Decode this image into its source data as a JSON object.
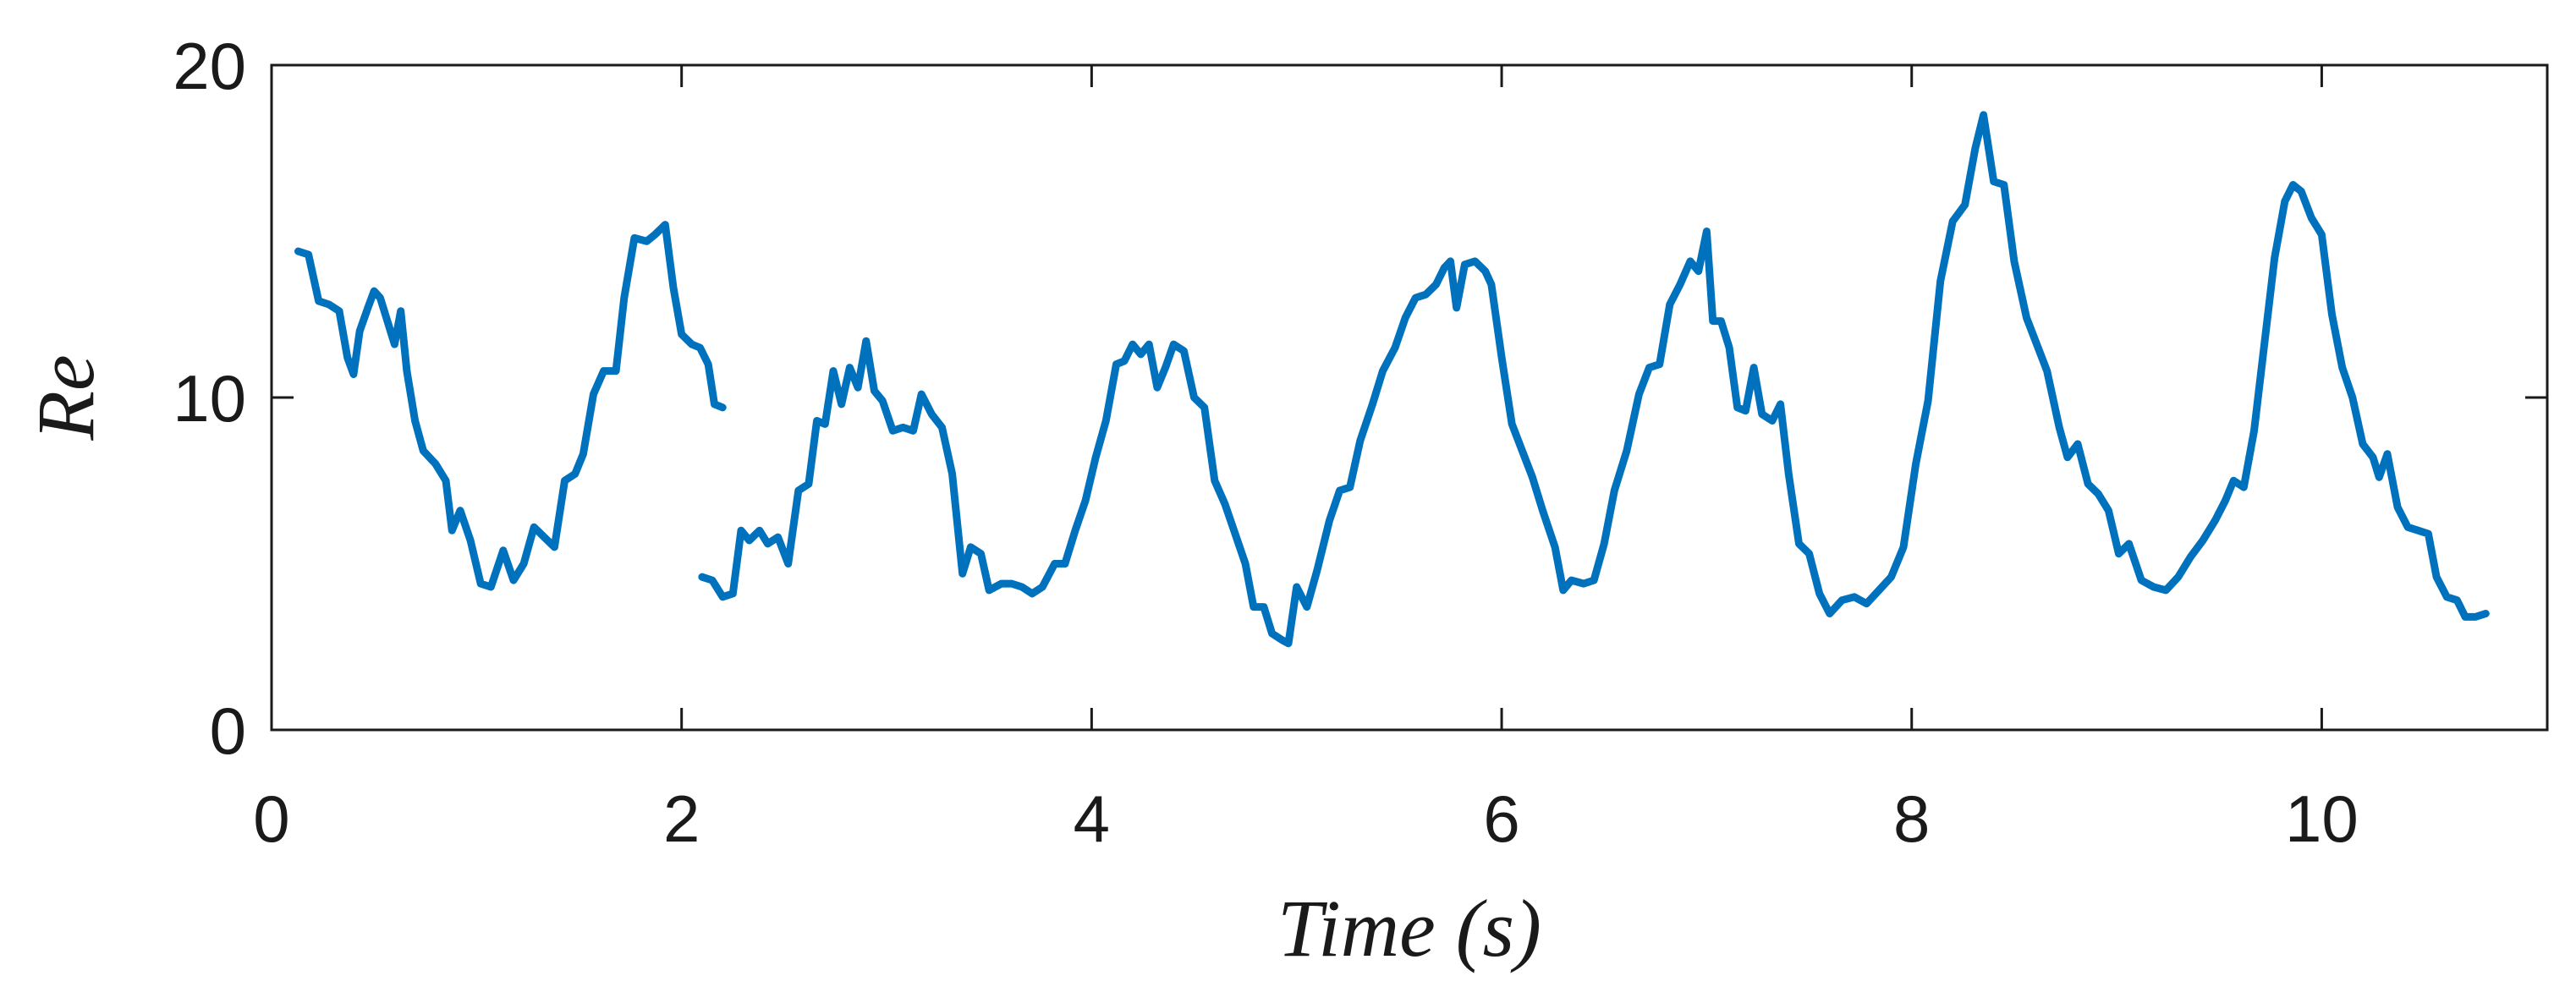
{
  "chart_data": {
    "type": "line",
    "title": "",
    "xlabel": "Time (s)",
    "ylabel": "Re",
    "xlim": [
      0,
      11.1
    ],
    "ylim": [
      0,
      20
    ],
    "xticks": [
      0,
      2,
      4,
      6,
      8,
      10
    ],
    "yticks": [
      0,
      10,
      20
    ],
    "xtick_labels": [
      "0",
      "2",
      "4",
      "6",
      "8",
      "10"
    ],
    "ytick_labels": [
      "0",
      "10",
      "20"
    ],
    "grid": false,
    "legend": "none",
    "series": [
      {
        "color": "#0072BD",
        "segments": [
          [
            [
              0.13,
              14.4
            ],
            [
              0.18,
              14.3
            ],
            [
              0.23,
              12.9
            ],
            [
              0.28,
              12.8
            ],
            [
              0.33,
              12.6
            ],
            [
              0.37,
              11.2
            ],
            [
              0.4,
              10.7
            ],
            [
              0.43,
              12.0
            ],
            [
              0.47,
              12.7
            ],
            [
              0.5,
              13.2
            ],
            [
              0.53,
              13.0
            ],
            [
              0.56,
              12.4
            ],
            [
              0.6,
              11.6
            ],
            [
              0.63,
              12.6
            ],
            [
              0.66,
              10.8
            ],
            [
              0.7,
              9.3
            ],
            [
              0.74,
              8.4
            ],
            [
              0.8,
              8.0
            ],
            [
              0.85,
              7.5
            ],
            [
              0.88,
              6.0
            ],
            [
              0.92,
              6.6
            ],
            [
              0.97,
              5.7
            ],
            [
              1.02,
              4.4
            ],
            [
              1.07,
              4.3
            ],
            [
              1.13,
              5.4
            ],
            [
              1.18,
              4.5
            ],
            [
              1.23,
              5.0
            ],
            [
              1.28,
              6.1
            ],
            [
              1.33,
              5.8
            ],
            [
              1.38,
              5.5
            ],
            [
              1.43,
              7.5
            ],
            [
              1.48,
              7.7
            ],
            [
              1.52,
              8.3
            ],
            [
              1.57,
              10.1
            ],
            [
              1.62,
              10.8
            ],
            [
              1.68,
              10.8
            ],
            [
              1.72,
              13.0
            ],
            [
              1.77,
              14.8
            ],
            [
              1.83,
              14.7
            ],
            [
              1.87,
              14.9
            ],
            [
              1.92,
              15.2
            ],
            [
              1.96,
              13.3
            ],
            [
              2.0,
              11.9
            ],
            [
              2.05,
              11.6
            ],
            [
              2.09,
              11.5
            ],
            [
              2.13,
              11.0
            ],
            [
              2.16,
              9.8
            ],
            [
              2.2,
              9.7
            ]
          ],
          [
            [
              2.1,
              4.6
            ],
            [
              2.15,
              4.5
            ],
            [
              2.2,
              4.0
            ],
            [
              2.25,
              4.1
            ],
            [
              2.29,
              6.0
            ],
            [
              2.33,
              5.7
            ],
            [
              2.38,
              6.0
            ],
            [
              2.42,
              5.6
            ],
            [
              2.47,
              5.8
            ],
            [
              2.52,
              5.0
            ],
            [
              2.57,
              7.2
            ],
            [
              2.62,
              7.4
            ],
            [
              2.66,
              9.3
            ],
            [
              2.7,
              9.2
            ],
            [
              2.74,
              10.8
            ],
            [
              2.78,
              9.8
            ],
            [
              2.82,
              10.9
            ],
            [
              2.86,
              10.3
            ],
            [
              2.9,
              11.7
            ],
            [
              2.94,
              10.2
            ],
            [
              2.98,
              9.9
            ],
            [
              3.03,
              9.0
            ],
            [
              3.08,
              9.1
            ],
            [
              3.13,
              9.0
            ],
            [
              3.17,
              10.1
            ],
            [
              3.22,
              9.5
            ],
            [
              3.27,
              9.1
            ],
            [
              3.32,
              7.7
            ],
            [
              3.37,
              4.7
            ],
            [
              3.41,
              5.5
            ],
            [
              3.46,
              5.3
            ],
            [
              3.5,
              4.2
            ],
            [
              3.56,
              4.4
            ],
            [
              3.61,
              4.4
            ],
            [
              3.66,
              4.3
            ],
            [
              3.71,
              4.1
            ],
            [
              3.76,
              4.3
            ],
            [
              3.82,
              5.0
            ],
            [
              3.87,
              5.0
            ],
            [
              3.92,
              6.0
            ],
            [
              3.97,
              6.9
            ],
            [
              4.02,
              8.2
            ],
            [
              4.07,
              9.3
            ],
            [
              4.12,
              11.0
            ],
            [
              4.16,
              11.1
            ],
            [
              4.2,
              11.6
            ],
            [
              4.24,
              11.3
            ],
            [
              4.28,
              11.6
            ],
            [
              4.32,
              10.3
            ],
            [
              4.36,
              10.9
            ],
            [
              4.4,
              11.6
            ],
            [
              4.45,
              11.4
            ],
            [
              4.5,
              10.0
            ],
            [
              4.55,
              9.7
            ],
            [
              4.6,
              7.5
            ],
            [
              4.65,
              6.8
            ],
            [
              4.7,
              5.9
            ],
            [
              4.75,
              5.0
            ],
            [
              4.79,
              3.7
            ],
            [
              4.84,
              3.7
            ],
            [
              4.88,
              2.9
            ],
            [
              4.93,
              2.7
            ],
            [
              4.96,
              2.6
            ],
            [
              5.0,
              4.3
            ],
            [
              5.05,
              3.7
            ],
            [
              5.1,
              4.8
            ],
            [
              5.16,
              6.3
            ],
            [
              5.21,
              7.2
            ],
            [
              5.26,
              7.3
            ],
            [
              5.31,
              8.7
            ],
            [
              5.37,
              9.8
            ],
            [
              5.42,
              10.8
            ],
            [
              5.48,
              11.5
            ],
            [
              5.53,
              12.4
            ],
            [
              5.58,
              13.0
            ],
            [
              5.63,
              13.1
            ],
            [
              5.68,
              13.4
            ],
            [
              5.72,
              13.9
            ],
            [
              5.75,
              14.1
            ],
            [
              5.78,
              12.7
            ],
            [
              5.82,
              14.0
            ],
            [
              5.87,
              14.1
            ],
            [
              5.92,
              13.8
            ],
            [
              5.95,
              13.4
            ],
            [
              6.0,
              11.2
            ],
            [
              6.05,
              9.2
            ],
            [
              6.1,
              8.4
            ],
            [
              6.15,
              7.6
            ],
            [
              6.2,
              6.6
            ],
            [
              6.26,
              5.5
            ],
            [
              6.3,
              4.2
            ],
            [
              6.34,
              4.5
            ],
            [
              6.4,
              4.4
            ],
            [
              6.45,
              4.5
            ],
            [
              6.5,
              5.6
            ],
            [
              6.55,
              7.2
            ],
            [
              6.61,
              8.4
            ],
            [
              6.67,
              10.1
            ],
            [
              6.72,
              10.9
            ],
            [
              6.77,
              11.0
            ],
            [
              6.82,
              12.8
            ],
            [
              6.87,
              13.4
            ],
            [
              6.92,
              14.1
            ],
            [
              6.96,
              13.8
            ],
            [
              7.0,
              15.0
            ],
            [
              7.03,
              12.3
            ],
            [
              7.07,
              12.3
            ],
            [
              7.11,
              11.5
            ],
            [
              7.15,
              9.7
            ],
            [
              7.19,
              9.6
            ],
            [
              7.23,
              10.9
            ],
            [
              7.27,
              9.5
            ],
            [
              7.32,
              9.3
            ],
            [
              7.36,
              9.8
            ],
            [
              7.4,
              7.7
            ],
            [
              7.45,
              5.6
            ],
            [
              7.5,
              5.3
            ],
            [
              7.55,
              4.1
            ],
            [
              7.6,
              3.5
            ],
            [
              7.66,
              3.9
            ],
            [
              7.72,
              4.0
            ],
            [
              7.78,
              3.8
            ],
            [
              7.84,
              4.2
            ],
            [
              7.9,
              4.6
            ],
            [
              7.96,
              5.5
            ],
            [
              8.02,
              8.0
            ],
            [
              8.08,
              9.9
            ],
            [
              8.14,
              13.5
            ],
            [
              8.2,
              15.3
            ],
            [
              8.26,
              15.8
            ],
            [
              8.31,
              17.5
            ],
            [
              8.35,
              18.5
            ],
            [
              8.4,
              16.5
            ],
            [
              8.45,
              16.4
            ],
            [
              8.5,
              14.1
            ],
            [
              8.56,
              12.4
            ],
            [
              8.61,
              11.6
            ],
            [
              8.66,
              10.8
            ],
            [
              8.72,
              9.1
            ],
            [
              8.76,
              8.2
            ],
            [
              8.81,
              8.6
            ],
            [
              8.86,
              7.4
            ],
            [
              8.91,
              7.1
            ],
            [
              8.96,
              6.6
            ],
            [
              9.01,
              5.3
            ],
            [
              9.06,
              5.6
            ],
            [
              9.12,
              4.5
            ],
            [
              9.18,
              4.3
            ],
            [
              9.24,
              4.2
            ],
            [
              9.3,
              4.6
            ],
            [
              9.36,
              5.2
            ],
            [
              9.42,
              5.7
            ],
            [
              9.48,
              6.3
            ],
            [
              9.53,
              6.9
            ],
            [
              9.57,
              7.5
            ],
            [
              9.62,
              7.3
            ],
            [
              9.67,
              9.0
            ],
            [
              9.72,
              11.6
            ],
            [
              9.77,
              14.2
            ],
            [
              9.82,
              15.9
            ],
            [
              9.86,
              16.4
            ],
            [
              9.9,
              16.2
            ],
            [
              9.95,
              15.4
            ],
            [
              10.0,
              14.9
            ],
            [
              10.05,
              12.5
            ],
            [
              10.1,
              10.9
            ],
            [
              10.15,
              10.0
            ],
            [
              10.2,
              8.6
            ],
            [
              10.25,
              8.2
            ],
            [
              10.28,
              7.6
            ],
            [
              10.32,
              8.3
            ],
            [
              10.37,
              6.7
            ],
            [
              10.42,
              6.1
            ],
            [
              10.47,
              6.0
            ],
            [
              10.52,
              5.9
            ],
            [
              10.56,
              4.6
            ],
            [
              10.61,
              4.0
            ],
            [
              10.66,
              3.9
            ],
            [
              10.7,
              3.4
            ],
            [
              10.75,
              3.4
            ],
            [
              10.8,
              3.5
            ]
          ]
        ]
      }
    ]
  }
}
